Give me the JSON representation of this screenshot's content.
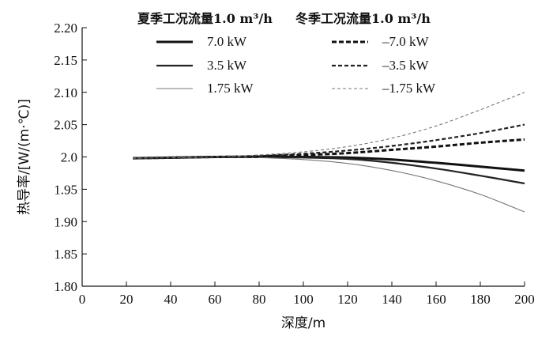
{
  "chart_data": {
    "type": "line",
    "xlabel": "深度/m",
    "ylabel": "热导率/[W/(m·℃)]",
    "xlim": [
      0,
      200
    ],
    "ylim": [
      1.8,
      2.2
    ],
    "x_ticks": [
      "0",
      "20",
      "40",
      "60",
      "80",
      "100",
      "120",
      "140",
      "160",
      "180",
      "200"
    ],
    "y_ticks": [
      "1.80",
      "1.85",
      "1.90",
      "1.95",
      "2.0",
      "2.05",
      "2.10",
      "2.15",
      "2.20"
    ],
    "grid": false,
    "legend_position": "top",
    "legend_groups": [
      {
        "title": "夏季工况流量1.0 m³/h",
        "entries": [
          "7.0 kW",
          "3.5 kW",
          "1.75 kW"
        ]
      },
      {
        "title": "冬季工况流量1.0 m³/h",
        "entries": [
          "–7.0 kW",
          "–3.5 kW",
          "–1.75 kW"
        ]
      }
    ],
    "series": [
      {
        "name": "7.0 kW",
        "group": "summer",
        "style": "solid",
        "weight": "heavy",
        "color": "#111111",
        "x": [
          23,
          60,
          80,
          100,
          120,
          140,
          160,
          180,
          200
        ],
        "y": [
          1.998,
          2.0,
          2.0,
          2.0,
          1.999,
          1.996,
          1.991,
          1.985,
          1.979
        ]
      },
      {
        "name": "3.5 kW",
        "group": "summer",
        "style": "solid",
        "weight": "medium",
        "color": "#222222",
        "x": [
          23,
          60,
          80,
          100,
          120,
          140,
          160,
          180,
          200
        ],
        "y": [
          1.998,
          2.0,
          2.0,
          1.999,
          1.997,
          1.991,
          1.982,
          1.971,
          1.959
        ]
      },
      {
        "name": "1.75 kW",
        "group": "summer",
        "style": "solid",
        "weight": "light",
        "color": "#777777",
        "x": [
          23,
          60,
          80,
          100,
          120,
          140,
          160,
          180,
          200
        ],
        "y": [
          1.998,
          2.0,
          1.999,
          1.996,
          1.99,
          1.979,
          1.963,
          1.942,
          1.915
        ]
      },
      {
        "name": "–7.0 kW",
        "group": "winter",
        "style": "dashed",
        "weight": "heavy",
        "color": "#111111",
        "x": [
          23,
          60,
          80,
          100,
          120,
          140,
          160,
          180,
          200
        ],
        "y": [
          1.998,
          2.0,
          2.001,
          2.003,
          2.006,
          2.011,
          2.016,
          2.022,
          2.027
        ]
      },
      {
        "name": "–3.5 kW",
        "group": "winter",
        "style": "dashed",
        "weight": "medium",
        "color": "#222222",
        "x": [
          23,
          60,
          80,
          100,
          120,
          140,
          160,
          180,
          200
        ],
        "y": [
          1.998,
          2.0,
          2.002,
          2.005,
          2.01,
          2.017,
          2.026,
          2.037,
          2.05
        ]
      },
      {
        "name": "–1.75 kW",
        "group": "winter",
        "style": "dashed",
        "weight": "light",
        "color": "#777777",
        "x": [
          23,
          60,
          80,
          100,
          120,
          140,
          160,
          180,
          200
        ],
        "y": [
          1.998,
          2.0,
          2.003,
          2.008,
          2.016,
          2.029,
          2.048,
          2.073,
          2.1
        ]
      }
    ]
  }
}
